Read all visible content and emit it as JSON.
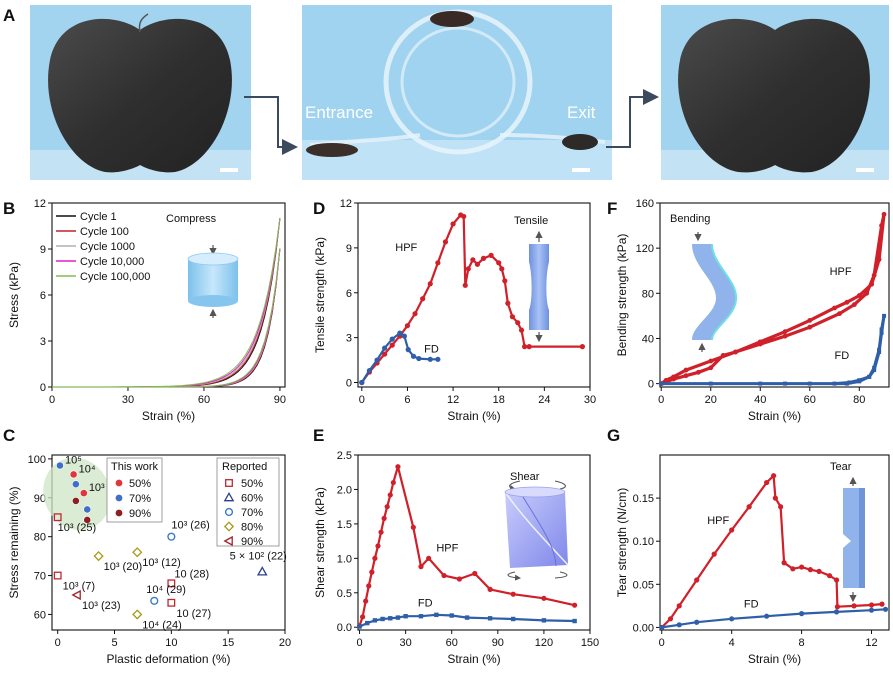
{
  "panel_letters": {
    "A": "A",
    "B": "B",
    "C": "C",
    "D": "D",
    "E": "E",
    "F": "F",
    "G": "G"
  },
  "photos": {
    "entrance_label": "Entrance",
    "exit_label": "Exit"
  },
  "colors": {
    "hpf": "#d0202a",
    "fd": "#2e5fa8",
    "photo_bg": "#9fd3ef",
    "sponge": "#3a3a3a",
    "cylinder": "#a6d6f4"
  },
  "chart_data": [
    {
      "id": "B",
      "type": "line",
      "title": "Compress",
      "xlabel": "Strain (%)",
      "ylabel": "Stress (kPa)",
      "xlim": [
        0,
        92
      ],
      "ylim": [
        0,
        12
      ],
      "xticks": [
        0,
        30,
        60,
        90
      ],
      "yticks": [
        0,
        3,
        6,
        9,
        12
      ],
      "series": [
        {
          "name": "Cycle 1",
          "color": "#111111",
          "k": 14.5
        },
        {
          "name": "Cycle 100",
          "color": "#c0202a",
          "k": 14.0
        },
        {
          "name": "Cycle 1000",
          "color": "#b0b0b0",
          "k": 13.4
        },
        {
          "name": "Cycle 10,000",
          "color": "#e020c8",
          "k": 12.8
        },
        {
          "name": "Cycle 100,000",
          "color": "#7fbf4f",
          "k": 12.2
        }
      ],
      "max_stress": 11
    },
    {
      "id": "C",
      "type": "scatter",
      "xlabel": "Plastic deformation (%)",
      "ylabel": "Stress remaining (%)",
      "xlim": [
        -0.5,
        20
      ],
      "ylim": [
        56,
        101
      ],
      "xticks": [
        0,
        5,
        10,
        15,
        20
      ],
      "yticks": [
        60,
        70,
        80,
        90,
        100
      ],
      "this_work_title": "This work",
      "reported_title": "Reported",
      "this_work_legend": [
        "50%",
        "70%",
        "90%"
      ],
      "reported_legend": [
        "50%",
        "60%",
        "70%",
        "80%",
        "90%"
      ],
      "this_work": [
        {
          "x": 0.2,
          "y": 98.3,
          "s": "70%",
          "label": "10⁵"
        },
        {
          "x": 1.4,
          "y": 96.0,
          "s": "50%",
          "label": "10⁴"
        },
        {
          "x": 1.6,
          "y": 93.5,
          "s": "70%",
          "label": ""
        },
        {
          "x": 2.3,
          "y": 91.2,
          "s": "50%",
          "label": "10³"
        },
        {
          "x": 1.6,
          "y": 89.2,
          "s": "90%",
          "label": ""
        },
        {
          "x": 2.6,
          "y": 87.0,
          "s": "70%",
          "label": ""
        },
        {
          "x": 2.6,
          "y": 84.3,
          "s": "90%",
          "label": ""
        }
      ],
      "reported": [
        {
          "x": 0,
          "y": 85,
          "s": "50%",
          "label": "10³ (25)"
        },
        {
          "x": 0,
          "y": 70,
          "s": "50%",
          "label": "10³ (7)"
        },
        {
          "x": 1.7,
          "y": 65,
          "s": "90%",
          "label": "10³ (23)"
        },
        {
          "x": 3.6,
          "y": 75,
          "s": "80%",
          "label": "10³ (20)"
        },
        {
          "x": 7.0,
          "y": 76,
          "s": "80%",
          "label": "10³ (12)"
        },
        {
          "x": 10.0,
          "y": 80,
          "s": "70%",
          "label": "10³ (26)"
        },
        {
          "x": 10.0,
          "y": 68,
          "s": "50%",
          "label": "10 (28)"
        },
        {
          "x": 8.5,
          "y": 63.5,
          "s": "70%",
          "label": "10⁴ (29)"
        },
        {
          "x": 10.0,
          "y": 63,
          "s": "50%",
          "label": "10 (27)"
        },
        {
          "x": 7.0,
          "y": 60,
          "s": "80%",
          "label": "10⁴ (24)"
        },
        {
          "x": 18.0,
          "y": 71,
          "s": "60%",
          "label": "5 × 10² (22)"
        }
      ]
    },
    {
      "id": "D",
      "type": "line",
      "title": "Tensile",
      "xlabel": "Strain (%)",
      "ylabel": "Tensile strength (kPa)",
      "xlim": [
        -0.5,
        30
      ],
      "ylim": [
        -0.3,
        12
      ],
      "xticks": [
        0,
        6,
        12,
        18,
        24,
        30
      ],
      "yticks": [
        0,
        3,
        6,
        9,
        12
      ],
      "series": [
        {
          "name": "HPF",
          "points": [
            [
              0,
              0
            ],
            [
              1,
              0.7
            ],
            [
              2,
              1.3
            ],
            [
              3,
              1.9
            ],
            [
              4,
              2.5
            ],
            [
              5,
              3.1
            ],
            [
              6,
              3.8
            ],
            [
              7,
              4.6
            ],
            [
              8,
              5.6
            ],
            [
              9,
              6.6
            ],
            [
              10,
              8.0
            ],
            [
              11,
              9.4
            ],
            [
              12,
              10.6
            ],
            [
              13,
              11.2
            ],
            [
              13.4,
              11.1
            ],
            [
              13.6,
              6.5
            ],
            [
              14,
              7.6
            ],
            [
              14.6,
              8.2
            ],
            [
              15.2,
              7.9
            ],
            [
              16,
              8.3
            ],
            [
              17,
              8.5
            ],
            [
              18,
              8.0
            ],
            [
              18.4,
              7.6
            ],
            [
              18.8,
              6.8
            ],
            [
              19.2,
              5.3
            ],
            [
              19.8,
              4.4
            ],
            [
              20.5,
              4.0
            ],
            [
              21,
              3.5
            ],
            [
              21.4,
              2.4
            ],
            [
              22,
              2.4
            ],
            [
              29,
              2.4
            ]
          ]
        },
        {
          "name": "FD",
          "points": [
            [
              0,
              0
            ],
            [
              1,
              0.8
            ],
            [
              2,
              1.5
            ],
            [
              3,
              2.3
            ],
            [
              4,
              2.9
            ],
            [
              5,
              3.3
            ],
            [
              5.6,
              3.1
            ],
            [
              6.1,
              2.2
            ],
            [
              6.8,
              1.75
            ],
            [
              7.5,
              1.6
            ],
            [
              9,
              1.55
            ],
            [
              10,
              1.55
            ]
          ]
        }
      ]
    },
    {
      "id": "E",
      "type": "line",
      "title": "Shear",
      "xlabel": "Strain (%)",
      "ylabel": "Shear strength (kPa)",
      "xlim": [
        -1,
        150
      ],
      "ylim": [
        -0.04,
        2.5
      ],
      "xticks": [
        0,
        30,
        60,
        90,
        120,
        150
      ],
      "yticks": [
        0.0,
        0.5,
        1.0,
        1.5,
        2.0,
        2.5
      ],
      "series": [
        {
          "name": "HPF",
          "points": [
            [
              0,
              0.02
            ],
            [
              2,
              0.15
            ],
            [
              4,
              0.38
            ],
            [
              6,
              0.6
            ],
            [
              8,
              0.8
            ],
            [
              10,
              1.0
            ],
            [
              12,
              1.18
            ],
            [
              14,
              1.38
            ],
            [
              16,
              1.58
            ],
            [
              18,
              1.75
            ],
            [
              20,
              1.92
            ],
            [
              22,
              2.1
            ],
            [
              25,
              2.33
            ],
            [
              35,
              1.45
            ],
            [
              40,
              0.88
            ],
            [
              45,
              1.0
            ],
            [
              55,
              0.75
            ],
            [
              65,
              0.7
            ],
            [
              75,
              0.78
            ],
            [
              85,
              0.55
            ],
            [
              100,
              0.48
            ],
            [
              120,
              0.42
            ],
            [
              140,
              0.32
            ]
          ]
        },
        {
          "name": "FD",
          "points": [
            [
              0,
              0.01
            ],
            [
              5,
              0.06
            ],
            [
              10,
              0.1
            ],
            [
              15,
              0.12
            ],
            [
              20,
              0.13
            ],
            [
              25,
              0.14
            ],
            [
              30,
              0.16
            ],
            [
              40,
              0.16
            ],
            [
              50,
              0.18
            ],
            [
              60,
              0.17
            ],
            [
              70,
              0.14
            ],
            [
              85,
              0.13
            ],
            [
              100,
              0.12
            ],
            [
              120,
              0.1
            ],
            [
              140,
              0.09
            ]
          ]
        }
      ]
    },
    {
      "id": "F",
      "type": "line",
      "title": "Bending",
      "xlabel": "Strain (%)",
      "ylabel": "Bending strength (kPa)",
      "xlim": [
        -0.5,
        92
      ],
      "ylim": [
        -3,
        160
      ],
      "xticks": [
        0,
        20,
        40,
        60,
        80
      ],
      "yticks": [
        0,
        40,
        80,
        120,
        160
      ],
      "series": [
        {
          "name": "HPF",
          "points": [
            [
              0,
              0
            ],
            [
              2,
              3
            ],
            [
              5,
              6
            ],
            [
              10,
              12
            ],
            [
              20,
              20
            ],
            [
              30,
              28
            ],
            [
              40,
              37
            ],
            [
              50,
              46
            ],
            [
              60,
              56
            ],
            [
              70,
              67
            ],
            [
              75,
              72
            ],
            [
              80,
              78
            ],
            [
              85,
              88
            ],
            [
              88,
              110
            ],
            [
              90,
              150
            ],
            [
              89,
              140
            ],
            [
              86,
              96
            ],
            [
              83,
              80
            ],
            [
              78,
              70
            ],
            [
              72,
              62
            ],
            [
              60,
              50
            ],
            [
              50,
              42
            ],
            [
              40,
              35
            ],
            [
              30,
              28
            ],
            [
              25,
              25
            ],
            [
              20,
              14
            ],
            [
              15,
              10
            ],
            [
              10,
              7
            ],
            [
              5,
              4
            ],
            [
              0,
              0
            ]
          ]
        },
        {
          "name": "FD",
          "points": [
            [
              0,
              0
            ],
            [
              20,
              0
            ],
            [
              40,
              0
            ],
            [
              60,
              0
            ],
            [
              70,
              0
            ],
            [
              76,
              1
            ],
            [
              80,
              3
            ],
            [
              84,
              6
            ],
            [
              86,
              12
            ],
            [
              88,
              28
            ],
            [
              89,
              45
            ],
            [
              90,
              60
            ],
            [
              89,
              48
            ],
            [
              88,
              30
            ],
            [
              86,
              14
            ],
            [
              84,
              6
            ],
            [
              80,
              2
            ],
            [
              75,
              0
            ],
            [
              50,
              0
            ],
            [
              0,
              0
            ]
          ]
        }
      ]
    },
    {
      "id": "G",
      "type": "line",
      "title": "Tear",
      "xlabel": "Strain (%)",
      "ylabel": "Tear strength (N/cm)",
      "xlim": [
        -0.1,
        13
      ],
      "ylim": [
        -0.003,
        0.2
      ],
      "xticks": [
        0,
        4,
        8,
        12
      ],
      "yticks": [
        0.0,
        0.05,
        0.1,
        0.15
      ],
      "series": [
        {
          "name": "HPF",
          "points": [
            [
              0,
              0
            ],
            [
              0.5,
              0.01
            ],
            [
              1,
              0.025
            ],
            [
              2,
              0.055
            ],
            [
              3,
              0.085
            ],
            [
              4,
              0.113
            ],
            [
              5,
              0.14
            ],
            [
              6,
              0.168
            ],
            [
              6.4,
              0.176
            ],
            [
              6.5,
              0.15
            ],
            [
              6.8,
              0.14
            ],
            [
              7,
              0.075
            ],
            [
              7.5,
              0.068
            ],
            [
              8,
              0.07
            ],
            [
              8.5,
              0.067
            ],
            [
              9,
              0.065
            ],
            [
              9.6,
              0.06
            ],
            [
              10,
              0.055
            ],
            [
              10.05,
              0.024
            ],
            [
              11,
              0.025
            ],
            [
              12,
              0.026
            ],
            [
              12.6,
              0.027
            ]
          ]
        },
        {
          "name": "FD",
          "points": [
            [
              0,
              0
            ],
            [
              1,
              0.003
            ],
            [
              2,
              0.006
            ],
            [
              4,
              0.01
            ],
            [
              6,
              0.013
            ],
            [
              8,
              0.016
            ],
            [
              10,
              0.018
            ],
            [
              12,
              0.02
            ],
            [
              12.8,
              0.021
            ]
          ]
        }
      ]
    }
  ]
}
